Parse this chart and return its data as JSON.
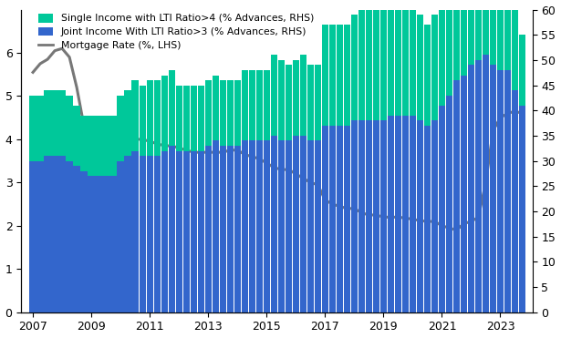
{
  "legend": [
    "Single Income with LTI Ratio>4 (% Advances, RHS)",
    "Joint Income With LTI Ratio>3 (% Advances, RHS)",
    "Mortgage Rate (%, LHS)"
  ],
  "colors": {
    "single": "#00C89A",
    "joint": "#3366CC",
    "mortgage": "#777777"
  },
  "years": [
    2007.0,
    2007.25,
    2007.5,
    2007.75,
    2008.0,
    2008.25,
    2008.5,
    2008.75,
    2009.0,
    2009.25,
    2009.5,
    2009.75,
    2010.0,
    2010.25,
    2010.5,
    2010.75,
    2011.0,
    2011.25,
    2011.5,
    2011.75,
    2012.0,
    2012.25,
    2012.5,
    2012.75,
    2013.0,
    2013.25,
    2013.5,
    2013.75,
    2014.0,
    2014.25,
    2014.5,
    2014.75,
    2015.0,
    2015.25,
    2015.5,
    2015.75,
    2016.0,
    2016.25,
    2016.5,
    2016.75,
    2017.0,
    2017.25,
    2017.5,
    2017.75,
    2018.0,
    2018.25,
    2018.5,
    2018.75,
    2019.0,
    2019.25,
    2019.5,
    2019.75,
    2020.0,
    2020.25,
    2020.5,
    2020.75,
    2021.0,
    2021.25,
    2021.5,
    2021.75,
    2022.0,
    2022.25,
    2022.5,
    2022.75,
    2023.0,
    2023.25,
    2023.5,
    2023.75
  ],
  "joint_income_rhs": [
    30,
    30,
    31,
    31,
    31,
    30,
    29,
    28,
    27,
    27,
    27,
    27,
    30,
    31,
    32,
    31,
    31,
    31,
    32,
    33,
    32,
    32,
    32,
    32,
    33,
    34,
    33,
    33,
    33,
    34,
    34,
    34,
    34,
    35,
    34,
    34,
    35,
    35,
    34,
    34,
    37,
    37,
    37,
    37,
    38,
    38,
    38,
    38,
    38,
    39,
    39,
    39,
    39,
    38,
    37,
    38,
    41,
    43,
    46,
    47,
    49,
    50,
    51,
    49,
    48,
    48,
    44,
    41
  ],
  "single_income_rhs": [
    13,
    13,
    13,
    13,
    13,
    13,
    12,
    11,
    12,
    12,
    12,
    12,
    13,
    13,
    14,
    14,
    15,
    15,
    15,
    15,
    13,
    13,
    13,
    13,
    13,
    13,
    13,
    13,
    13,
    14,
    14,
    14,
    14,
    16,
    16,
    15,
    15,
    16,
    15,
    15,
    20,
    20,
    20,
    20,
    21,
    22,
    22,
    23,
    23,
    24,
    23,
    22,
    22,
    21,
    20,
    21,
    23,
    25,
    23,
    21,
    21,
    22,
    21,
    21,
    21,
    22,
    24,
    14
  ],
  "mortgage_rate_lhs": [
    5.55,
    5.75,
    5.85,
    6.05,
    6.1,
    5.9,
    5.2,
    4.3,
    4.1,
    4.05,
    4.0,
    4.0,
    4.0,
    4.0,
    4.0,
    4.0,
    3.95,
    3.9,
    3.85,
    3.85,
    3.8,
    3.75,
    3.7,
    3.7,
    3.7,
    3.7,
    3.7,
    3.75,
    3.75,
    3.65,
    3.6,
    3.55,
    3.45,
    3.35,
    3.3,
    3.3,
    3.2,
    3.1,
    3.0,
    2.95,
    2.6,
    2.5,
    2.45,
    2.4,
    2.4,
    2.3,
    2.25,
    2.25,
    2.2,
    2.2,
    2.2,
    2.18,
    2.15,
    2.12,
    2.1,
    2.1,
    2.0,
    1.95,
    1.9,
    2.05,
    2.1,
    2.2,
    3.0,
    4.2,
    4.5,
    4.6,
    4.65,
    4.6
  ],
  "lhs_ylim": [
    0,
    7
  ],
  "rhs_ylim": [
    0,
    60
  ],
  "lhs_yticks": [
    0,
    1,
    2,
    3,
    4,
    5,
    6
  ],
  "rhs_yticks": [
    0,
    5,
    10,
    15,
    20,
    25,
    30,
    35,
    40,
    45,
    50,
    55,
    60
  ],
  "xticks": [
    2007,
    2009,
    2011,
    2013,
    2015,
    2017,
    2019,
    2021,
    2023
  ],
  "xlim": [
    2006.6,
    2024.1
  ],
  "bar_width": 0.23
}
